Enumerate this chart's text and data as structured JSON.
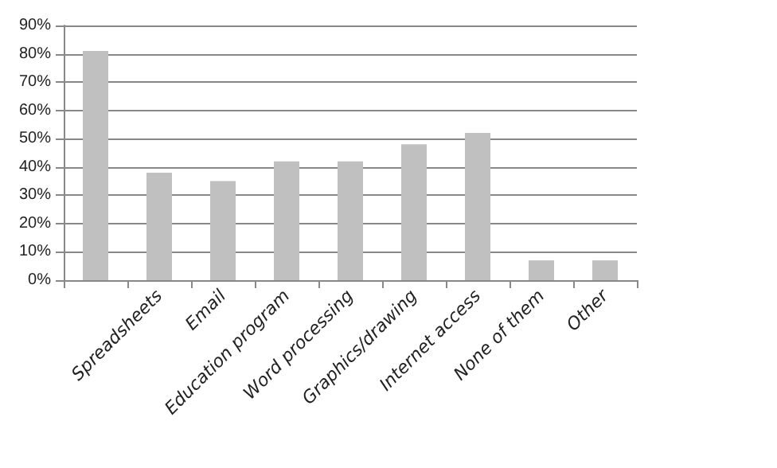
{
  "chart_data": {
    "type": "bar",
    "categories": [
      null,
      "Spreadsheets",
      "Email",
      "Education program",
      "Word processing",
      "Graphics/drawing",
      "Internet access",
      "None of them",
      "Other"
    ],
    "values": [
      81,
      38,
      35,
      42,
      42,
      48,
      52,
      7,
      7
    ],
    "color": "#c0c0c0",
    "ylim": [
      0,
      90
    ],
    "yticks": [
      {
        "value": 0,
        "label": "0%"
      },
      {
        "value": 10,
        "label": "10%"
      },
      {
        "value": 20,
        "label": "20%"
      },
      {
        "value": 30,
        "label": "30%"
      },
      {
        "value": 40,
        "label": "40%"
      },
      {
        "value": 50,
        "label": "50%"
      },
      {
        "value": 60,
        "label": "60%"
      },
      {
        "value": 70,
        "label": "70%"
      },
      {
        "value": 80,
        "label": "80%"
      },
      {
        "value": 90,
        "label": "90%"
      }
    ],
    "grid": "y"
  }
}
